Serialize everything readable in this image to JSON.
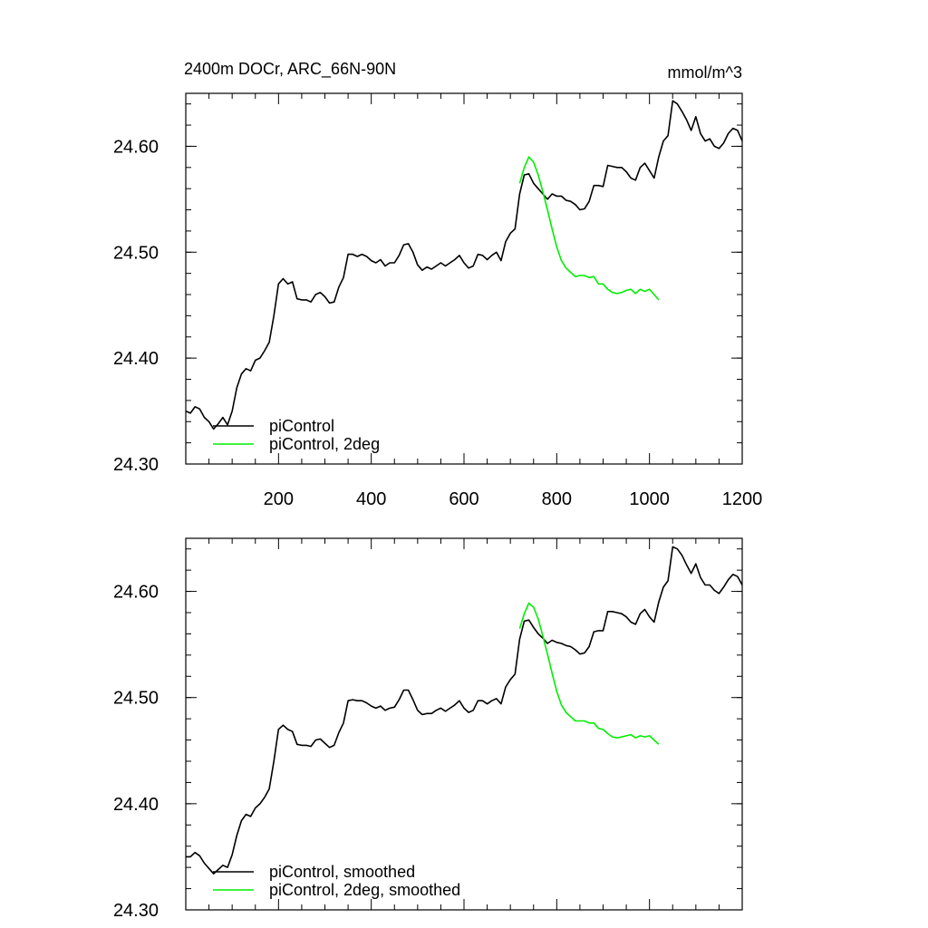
{
  "chart_data": [
    {
      "type": "line",
      "title": "2400m DOCr, ARC_66N-90N",
      "units": "mmol/m^3",
      "xlim": [
        0,
        1200
      ],
      "ylim": [
        24.3,
        24.65
      ],
      "xticks": [
        200,
        400,
        600,
        800,
        1000,
        1200
      ],
      "xtick_labels": [
        "200",
        "400",
        "600",
        "800",
        "1000",
        "1200"
      ],
      "yticks": [
        24.3,
        24.4,
        24.5,
        24.6
      ],
      "ytick_labels": [
        "24.30",
        "24.40",
        "24.50",
        "24.60"
      ],
      "legend_placement": "bottom-left",
      "series": [
        {
          "name": "piControl",
          "color": "#000000",
          "x": [
            0,
            10,
            20,
            30,
            40,
            50,
            60,
            70,
            80,
            90,
            100,
            110,
            120,
            130,
            140,
            150,
            160,
            170,
            180,
            190,
            200,
            210,
            220,
            230,
            240,
            250,
            260,
            270,
            280,
            290,
            300,
            310,
            320,
            330,
            340,
            350,
            360,
            370,
            380,
            390,
            400,
            410,
            420,
            430,
            440,
            450,
            460,
            470,
            480,
            490,
            500,
            510,
            520,
            530,
            540,
            550,
            560,
            570,
            580,
            590,
            600,
            610,
            620,
            630,
            640,
            650,
            660,
            670,
            680,
            690,
            700,
            710,
            720,
            730,
            740,
            750,
            760,
            770,
            780,
            790,
            800,
            810,
            820,
            830,
            840,
            850,
            860,
            870,
            880,
            890,
            900,
            910,
            920,
            930,
            940,
            950,
            960,
            970,
            980,
            990,
            1000,
            1010,
            1020,
            1030,
            1040,
            1050,
            1060,
            1070,
            1080,
            1090,
            1100,
            1110,
            1120,
            1130,
            1140,
            1150,
            1160,
            1170,
            1180,
            1190,
            1200
          ],
          "values": [
            24.35,
            24.348,
            24.354,
            24.352,
            24.344,
            24.34,
            24.333,
            24.338,
            24.344,
            24.337,
            24.35,
            24.372,
            24.385,
            24.39,
            24.388,
            24.398,
            24.4,
            24.407,
            24.415,
            24.44,
            24.47,
            24.475,
            24.47,
            24.472,
            24.456,
            24.455,
            24.455,
            24.453,
            24.46,
            24.462,
            24.458,
            24.452,
            24.453,
            24.467,
            24.476,
            24.498,
            24.498,
            24.496,
            24.498,
            24.496,
            24.492,
            24.49,
            24.493,
            24.487,
            24.49,
            24.49,
            24.497,
            24.507,
            24.508,
            24.5,
            24.488,
            24.483,
            24.486,
            24.484,
            24.487,
            24.49,
            24.487,
            24.49,
            24.493,
            24.497,
            24.49,
            24.485,
            24.487,
            24.498,
            24.497,
            24.493,
            24.497,
            24.5,
            24.492,
            24.51,
            24.518,
            24.522,
            24.555,
            24.573,
            24.574,
            24.565,
            24.56,
            24.555,
            24.55,
            24.555,
            24.553,
            24.553,
            24.549,
            24.548,
            24.545,
            24.54,
            24.541,
            24.548,
            24.563,
            24.563,
            24.562,
            24.582,
            24.581,
            24.58,
            24.58,
            24.576,
            24.57,
            24.568,
            24.58,
            24.584,
            24.577,
            24.57,
            24.59,
            24.605,
            24.61,
            24.643,
            24.64,
            24.633,
            24.625,
            24.615,
            24.628,
            24.612,
            24.605,
            24.607,
            24.6,
            24.598,
            24.603,
            24.612,
            24.617,
            24.615,
            24.605
          ]
        },
        {
          "name": "piControl, 2deg",
          "color": "#00ee00",
          "x": [
            720,
            730,
            740,
            750,
            760,
            770,
            780,
            790,
            800,
            810,
            820,
            830,
            840,
            850,
            860,
            870,
            880,
            890,
            900,
            910,
            920,
            930,
            940,
            950,
            960,
            970,
            980,
            990,
            1000,
            1010,
            1020
          ],
          "values": [
            24.565,
            24.58,
            24.59,
            24.585,
            24.573,
            24.557,
            24.54,
            24.522,
            24.505,
            24.492,
            24.485,
            24.481,
            24.477,
            24.478,
            24.478,
            24.476,
            24.477,
            24.47,
            24.47,
            24.465,
            24.462,
            24.461,
            24.462,
            24.464,
            24.465,
            24.461,
            24.465,
            24.463,
            24.465,
            24.46,
            24.455
          ]
        }
      ],
      "legend": [
        "piControl",
        "piControl, 2deg"
      ]
    },
    {
      "type": "line",
      "title": "",
      "xlim": [
        0,
        1200
      ],
      "ylim": [
        24.3,
        24.65
      ],
      "yticks": [
        24.3,
        24.4,
        24.5,
        24.6
      ],
      "ytick_labels": [
        "24.30",
        "24.40",
        "24.50",
        "24.60"
      ],
      "legend_placement": "bottom-left",
      "series": [
        {
          "name": "piControl, smoothed",
          "color": "#000000",
          "x": [
            0,
            10,
            20,
            30,
            40,
            50,
            60,
            70,
            80,
            90,
            100,
            110,
            120,
            130,
            140,
            150,
            160,
            170,
            180,
            190,
            200,
            210,
            220,
            230,
            240,
            250,
            260,
            270,
            280,
            290,
            300,
            310,
            320,
            330,
            340,
            350,
            360,
            370,
            380,
            390,
            400,
            410,
            420,
            430,
            440,
            450,
            460,
            470,
            480,
            490,
            500,
            510,
            520,
            530,
            540,
            550,
            560,
            570,
            580,
            590,
            600,
            610,
            620,
            630,
            640,
            650,
            660,
            670,
            680,
            690,
            700,
            710,
            720,
            730,
            740,
            750,
            760,
            770,
            780,
            790,
            800,
            810,
            820,
            830,
            840,
            850,
            860,
            870,
            880,
            890,
            900,
            910,
            920,
            930,
            940,
            950,
            960,
            970,
            980,
            990,
            1000,
            1010,
            1020,
            1030,
            1040,
            1050,
            1060,
            1070,
            1080,
            1090,
            1100,
            1110,
            1120,
            1130,
            1140,
            1150,
            1160,
            1170,
            1180,
            1190,
            1200
          ],
          "values": [
            24.35,
            24.35,
            24.354,
            24.351,
            24.344,
            24.339,
            24.334,
            24.338,
            24.342,
            24.34,
            24.352,
            24.37,
            24.384,
            24.39,
            24.388,
            24.396,
            24.4,
            24.406,
            24.414,
            24.44,
            24.47,
            24.474,
            24.47,
            24.468,
            24.456,
            24.455,
            24.455,
            24.454,
            24.46,
            24.461,
            24.457,
            24.453,
            24.455,
            24.467,
            24.476,
            24.497,
            24.498,
            24.497,
            24.497,
            24.495,
            24.492,
            24.49,
            24.492,
            24.488,
            24.49,
            24.491,
            24.498,
            24.507,
            24.507,
            24.498,
            24.488,
            24.484,
            24.485,
            24.485,
            24.488,
            24.49,
            24.487,
            24.49,
            24.493,
            24.497,
            24.49,
            24.486,
            24.488,
            24.497,
            24.497,
            24.494,
            24.497,
            24.499,
            24.494,
            24.51,
            24.517,
            24.522,
            24.555,
            24.572,
            24.573,
            24.566,
            24.56,
            24.556,
            24.551,
            24.554,
            24.552,
            24.551,
            24.549,
            24.548,
            24.545,
            24.541,
            24.542,
            24.548,
            24.562,
            24.563,
            24.563,
            24.581,
            24.581,
            24.58,
            24.579,
            24.576,
            24.571,
            24.569,
            24.579,
            24.583,
            24.576,
            24.571,
            24.59,
            24.604,
            24.61,
            24.642,
            24.64,
            24.634,
            24.625,
            24.617,
            24.626,
            24.613,
            24.606,
            24.606,
            24.601,
            24.598,
            24.604,
            24.611,
            24.616,
            24.614,
            24.606
          ]
        },
        {
          "name": "piControl, 2deg, smoothed",
          "color": "#00ee00",
          "x": [
            720,
            730,
            740,
            750,
            760,
            770,
            780,
            790,
            800,
            810,
            820,
            830,
            840,
            850,
            860,
            870,
            880,
            890,
            900,
            910,
            920,
            930,
            940,
            950,
            960,
            970,
            980,
            990,
            1000,
            1010,
            1020
          ],
          "values": [
            24.565,
            24.579,
            24.589,
            24.585,
            24.574,
            24.558,
            24.541,
            24.523,
            24.506,
            24.493,
            24.486,
            24.482,
            24.478,
            24.478,
            24.478,
            24.476,
            24.476,
            24.471,
            24.47,
            24.466,
            24.463,
            24.462,
            24.463,
            24.464,
            24.465,
            24.462,
            24.464,
            24.463,
            24.464,
            24.46,
            24.456
          ]
        }
      ],
      "legend": [
        "piControl, smoothed",
        "piControl, 2deg, smoothed"
      ]
    }
  ]
}
